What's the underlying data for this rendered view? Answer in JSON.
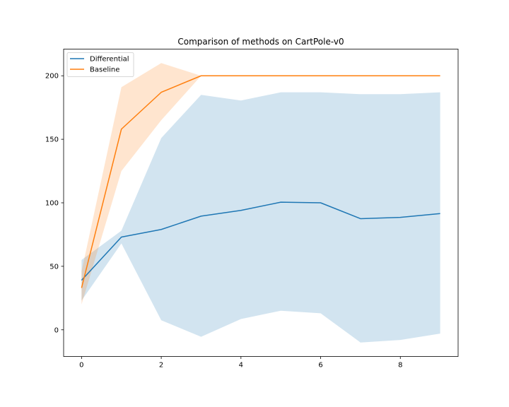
{
  "chart_data": {
    "type": "line",
    "title": "Comparison of methods on CartPole-v0",
    "xlabel": "",
    "ylabel": "",
    "xlim": [
      -0.45,
      9.45
    ],
    "ylim": [
      -21,
      221
    ],
    "xticks": [
      0,
      2,
      4,
      6,
      8
    ],
    "yticks": [
      0,
      50,
      100,
      150,
      200
    ],
    "grid": false,
    "legend_position": "top-left",
    "x": [
      0,
      1,
      2,
      3,
      4,
      5,
      6,
      7,
      8,
      9
    ],
    "series": [
      {
        "name": "Differential",
        "color": "#1f77b4",
        "band_color": "#1f77b4",
        "values": [
          39,
          73,
          79,
          89.5,
          94,
          100.5,
          100,
          87.5,
          88.5,
          91.5
        ],
        "lower": [
          23,
          68,
          7.5,
          -5.5,
          8.5,
          15,
          13,
          -10,
          -8,
          -3
        ],
        "upper": [
          55,
          78,
          151,
          185,
          180.5,
          187,
          187,
          185.5,
          185.5,
          187
        ]
      },
      {
        "name": "Baseline",
        "color": "#ff7f0e",
        "band_color": "#ff7f0e",
        "values": [
          33,
          158,
          187,
          200,
          200,
          200,
          200,
          200,
          200,
          200
        ],
        "lower": [
          20,
          125,
          165,
          200,
          200,
          200,
          200,
          200,
          200,
          200
        ],
        "upper": [
          46,
          191,
          210,
          200,
          200,
          200,
          200,
          200,
          200,
          200
        ]
      }
    ]
  }
}
